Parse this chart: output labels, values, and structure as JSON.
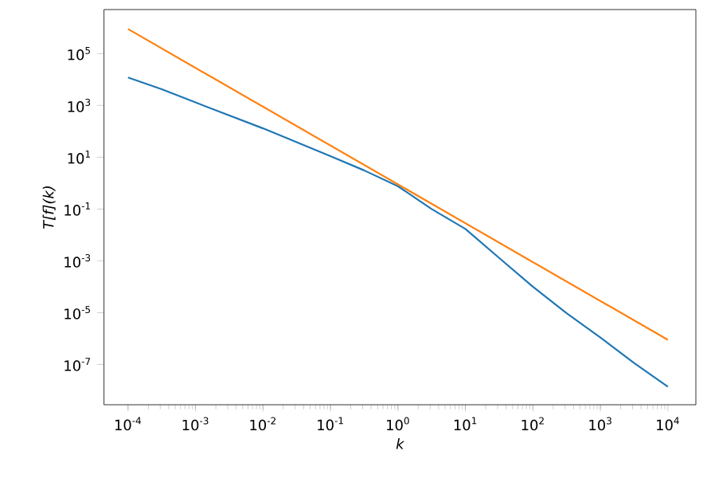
{
  "chart_data": {
    "type": "line",
    "xlabel": "k",
    "ylabel": "T[f](k)",
    "log": "xy",
    "grid": false,
    "xlim": [
      4.4e-05,
      26000.0
    ],
    "ylim": [
      2.8e-09,
      5000000.0
    ],
    "xticks": [
      {
        "value": 0.0001,
        "label": "10$^{-4}$"
      },
      {
        "value": 0.001,
        "label": "10$^{-3}$"
      },
      {
        "value": 0.01,
        "label": "10$^{-2}$"
      },
      {
        "value": 0.1,
        "label": "10$^{-1}$"
      },
      {
        "value": 1,
        "label": "10$^{0}$"
      },
      {
        "value": 10,
        "label": "10$^{1}$"
      },
      {
        "value": 100,
        "label": "10$^{2}$"
      },
      {
        "value": 1000,
        "label": "10$^{3}$"
      },
      {
        "value": 10000,
        "label": "10$^{4}$"
      }
    ],
    "yticks": [
      {
        "value": 1e-07,
        "label": "10$^{-7}$"
      },
      {
        "value": 1e-05,
        "label": "10$^{-5}$"
      },
      {
        "value": 0.001,
        "label": "10$^{-3}$"
      },
      {
        "value": 0.1,
        "label": "10$^{-1}$"
      },
      {
        "value": 10,
        "label": "10$^{1}$"
      },
      {
        "value": 1000,
        "label": "10$^{3}$"
      },
      {
        "value": 100000,
        "label": "10$^{5}$"
      }
    ],
    "series": [
      {
        "color": "#1f77b4",
        "x": [
          0.0001,
          0.000316,
          0.001,
          0.01,
          0.1,
          0.316,
          1,
          3.16,
          10,
          31.6,
          100,
          316,
          1000,
          3160,
          10000
        ],
        "values": [
          12000,
          4200,
          1300,
          130,
          11,
          3.1,
          0.76,
          0.1,
          0.017,
          0.0013,
          0.0001,
          9.5e-06,
          1.1e-06,
          1.15e-07,
          1.4e-08
        ]
      },
      {
        "color": "#ff7f0e",
        "x": [
          0.0001,
          10000
        ],
        "values": [
          890000.0,
          9e-07
        ]
      }
    ]
  }
}
